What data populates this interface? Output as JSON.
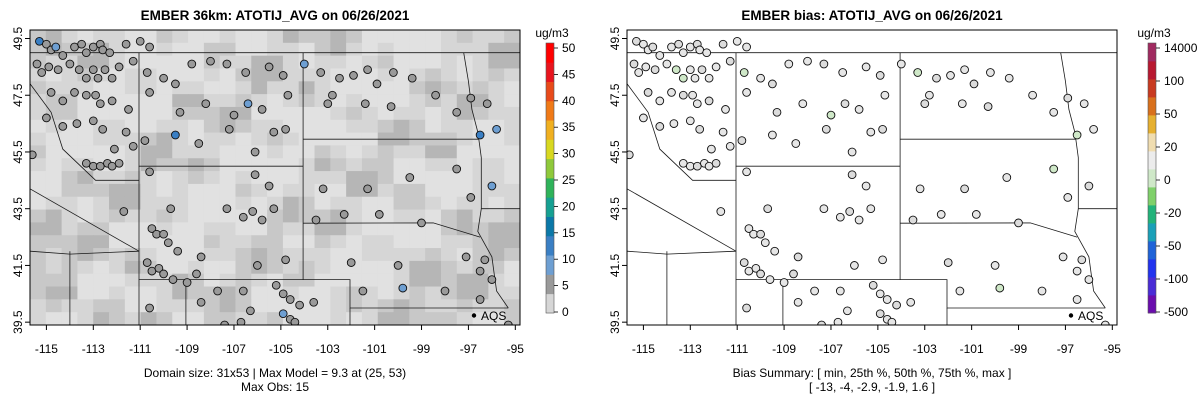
{
  "panels": [
    {
      "title": "EMBER 36km: ATOTIJ_AVG on 06/26/2021",
      "footer": [
        "Domain size: 31x53 | Max Model = 9.3 at (25, 53)",
        "Max Obs: 15"
      ],
      "colorbar": {
        "unit": "ug/m3",
        "ticks": [
          "0",
          "5",
          "10",
          "15",
          "20",
          "25",
          "30",
          "35",
          "40",
          "45",
          "50"
        ],
        "colors": [
          "#d6d6d6",
          "#9a9a9a",
          "#6e9fd2",
          "#3a7fc4",
          "#0b78a8",
          "#16a092",
          "#2fb35a",
          "#8fc93b",
          "#d8d820",
          "#f0b020",
          "#f07a18",
          "#e84a1a",
          "#e8141e",
          "#ff0000"
        ]
      }
    },
    {
      "title": "EMBER bias: ATOTIJ_AVG on 06/26/2021",
      "footer": [
        "Bias Summary: [ min, 25th %, 50th %, 75th %, max ]",
        "[ -13,  -4,  -2.9,  -1.9,  1.6 ]"
      ],
      "colorbar": {
        "unit": "ug/m3",
        "ticks": [
          "-500",
          "-100",
          "-50",
          "-20",
          "0",
          "20",
          "50",
          "100",
          "14000"
        ],
        "colors": [
          "#6a0dad",
          "#4a2cd6",
          "#2233ee",
          "#1f63d8",
          "#1aa0b8",
          "#22b37a",
          "#7fd06a",
          "#cfe8c8",
          "#ececec",
          "#f0ddb0",
          "#e6b030",
          "#d8701c",
          "#c83a20",
          "#b81830",
          "#a02a60"
        ]
      }
    }
  ],
  "map": {
    "station_label": "AQS",
    "x_ticks": [
      "-115",
      "-113",
      "-111",
      "-109",
      "-107",
      "-105",
      "-103",
      "-101",
      "-99",
      "-97",
      "-95"
    ],
    "y_ticks": [
      "39.5",
      "41.5",
      "43.5",
      "45.5",
      "47.5",
      "49.5"
    ]
  },
  "chart_data": [
    {
      "type": "heatmap",
      "title": "EMBER 36km: ATOTIJ_AVG on 06/26/2021",
      "x_range": [
        -115.7,
        -94.8
      ],
      "y_range": [
        39.4,
        49.8
      ],
      "colorbar_unit": "ug/m3",
      "colorbar_range": [
        0,
        50
      ],
      "colorbar_ticks": [
        0,
        5,
        10,
        15,
        20,
        25,
        30,
        35,
        40,
        45,
        50
      ],
      "domain_size": "31x53",
      "max_model": 9.3,
      "max_obs": 15,
      "legend": "AQS"
    },
    {
      "type": "scatter",
      "title": "EMBER bias: ATOTIJ_AVG on 06/26/2021",
      "x_range": [
        -115.7,
        -94.8
      ],
      "y_range": [
        39.4,
        49.8
      ],
      "colorbar_unit": "ug/m3",
      "colorbar_ticks": [
        -500,
        -100,
        -50,
        -20,
        0,
        20,
        50,
        100,
        14000
      ],
      "bias_summary": {
        "min": -13,
        "p25": -4,
        "p50": -2.9,
        "p75": -1.9,
        "max": 1.6
      },
      "legend": "AQS"
    }
  ]
}
